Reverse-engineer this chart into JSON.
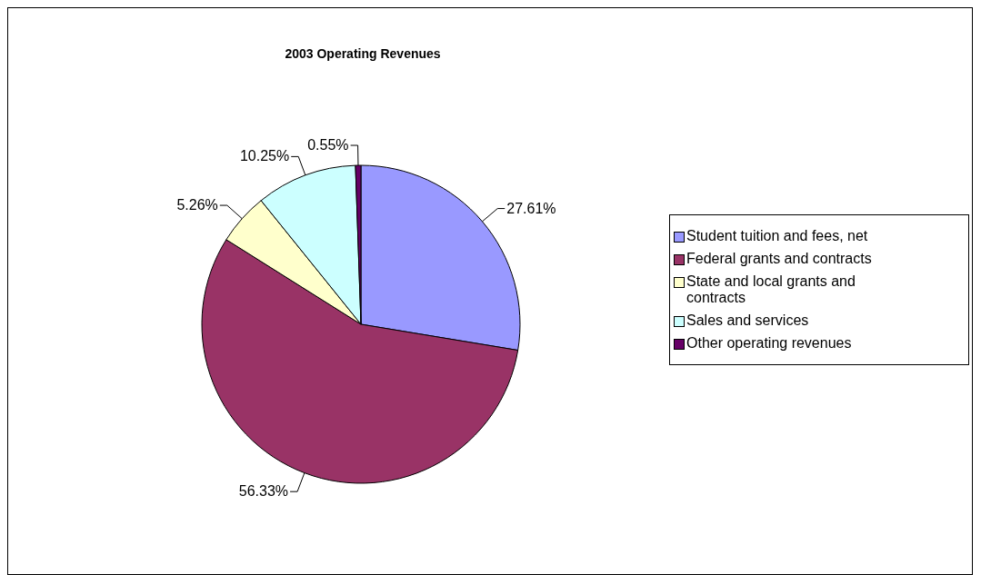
{
  "chart_data": {
    "type": "pie",
    "title": "2003 Operating Revenues",
    "categories": [
      "Student tuition and fees, net",
      "Federal grants and contracts",
      "State and local grants and contracts",
      "Sales and services",
      "Other operating revenues"
    ],
    "values": [
      27.61,
      56.33,
      5.26,
      10.25,
      0.55
    ],
    "value_labels": [
      "27.61%",
      "56.33%",
      "5.26%",
      "10.25%",
      "0.55%"
    ],
    "colors": [
      "#9999ff",
      "#993366",
      "#ffffcc",
      "#ccffff",
      "#660066"
    ],
    "legend": "right"
  }
}
